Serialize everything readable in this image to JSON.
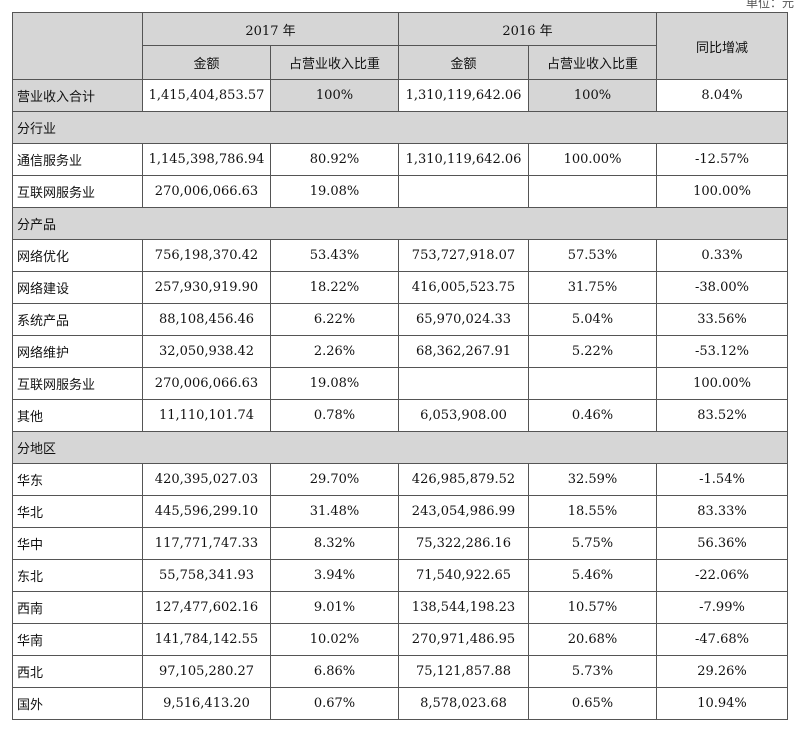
{
  "unit_text": "单位：元",
  "headers": {
    "year_2017": "2017 年",
    "year_2016": "2016 年",
    "yoy": "同比增减",
    "amount": "金额",
    "ratio": "占营业收入比重"
  },
  "total": {
    "label": "营业收入合计",
    "a2017": "1,415,404,853.57",
    "r2017": "100%",
    "a2016": "1,310,119,642.06",
    "r2016": "100%",
    "yoy": "8.04%"
  },
  "sections": {
    "industry": "分行业",
    "product": "分产品",
    "region": "分地区"
  },
  "industry_rows": [
    {
      "label": "通信服务业",
      "a2017": "1,145,398,786.94",
      "r2017": "80.92%",
      "a2016": "1,310,119,642.06",
      "r2016": "100.00%",
      "yoy": "-12.57%"
    },
    {
      "label": "互联网服务业",
      "a2017": "270,006,066.63",
      "r2017": "19.08%",
      "a2016": "",
      "r2016": "",
      "yoy": "100.00%"
    }
  ],
  "product_rows": [
    {
      "label": "网络优化",
      "a2017": "756,198,370.42",
      "r2017": "53.43%",
      "a2016": "753,727,918.07",
      "r2016": "57.53%",
      "yoy": "0.33%"
    },
    {
      "label": "网络建设",
      "a2017": "257,930,919.90",
      "r2017": "18.22%",
      "a2016": "416,005,523.75",
      "r2016": "31.75%",
      "yoy": "-38.00%"
    },
    {
      "label": "系统产品",
      "a2017": "88,108,456.46",
      "r2017": "6.22%",
      "a2016": "65,970,024.33",
      "r2016": "5.04%",
      "yoy": "33.56%"
    },
    {
      "label": "网络维护",
      "a2017": "32,050,938.42",
      "r2017": "2.26%",
      "a2016": "68,362,267.91",
      "r2016": "5.22%",
      "yoy": "-53.12%"
    },
    {
      "label": "互联网服务业",
      "a2017": "270,006,066.63",
      "r2017": "19.08%",
      "a2016": "",
      "r2016": "",
      "yoy": "100.00%"
    },
    {
      "label": "其他",
      "a2017": "11,110,101.74",
      "r2017": "0.78%",
      "a2016": "6,053,908.00",
      "r2016": "0.46%",
      "yoy": "83.52%"
    }
  ],
  "region_rows": [
    {
      "label": "华东",
      "a2017": "420,395,027.03",
      "r2017": "29.70%",
      "a2016": "426,985,879.52",
      "r2016": "32.59%",
      "yoy": "-1.54%"
    },
    {
      "label": "华北",
      "a2017": "445,596,299.10",
      "r2017": "31.48%",
      "a2016": "243,054,986.99",
      "r2016": "18.55%",
      "yoy": "83.33%"
    },
    {
      "label": "华中",
      "a2017": "117,771,747.33",
      "r2017": "8.32%",
      "a2016": "75,322,286.16",
      "r2016": "5.75%",
      "yoy": "56.36%"
    },
    {
      "label": "东北",
      "a2017": "55,758,341.93",
      "r2017": "3.94%",
      "a2016": "71,540,922.65",
      "r2016": "5.46%",
      "yoy": "-22.06%"
    },
    {
      "label": "西南",
      "a2017": "127,477,602.16",
      "r2017": "9.01%",
      "a2016": "138,544,198.23",
      "r2016": "10.57%",
      "yoy": "-7.99%"
    },
    {
      "label": "华南",
      "a2017": "141,784,142.55",
      "r2017": "10.02%",
      "a2016": "270,971,486.95",
      "r2016": "20.68%",
      "yoy": "-47.68%"
    },
    {
      "label": "西北",
      "a2017": "97,105,280.27",
      "r2017": "6.86%",
      "a2016": "75,121,857.88",
      "r2016": "5.73%",
      "yoy": "29.26%"
    },
    {
      "label": "国外",
      "a2017": "9,516,413.20",
      "r2017": "0.67%",
      "a2016": "8,578,023.68",
      "r2016": "0.65%",
      "yoy": "10.94%"
    }
  ]
}
